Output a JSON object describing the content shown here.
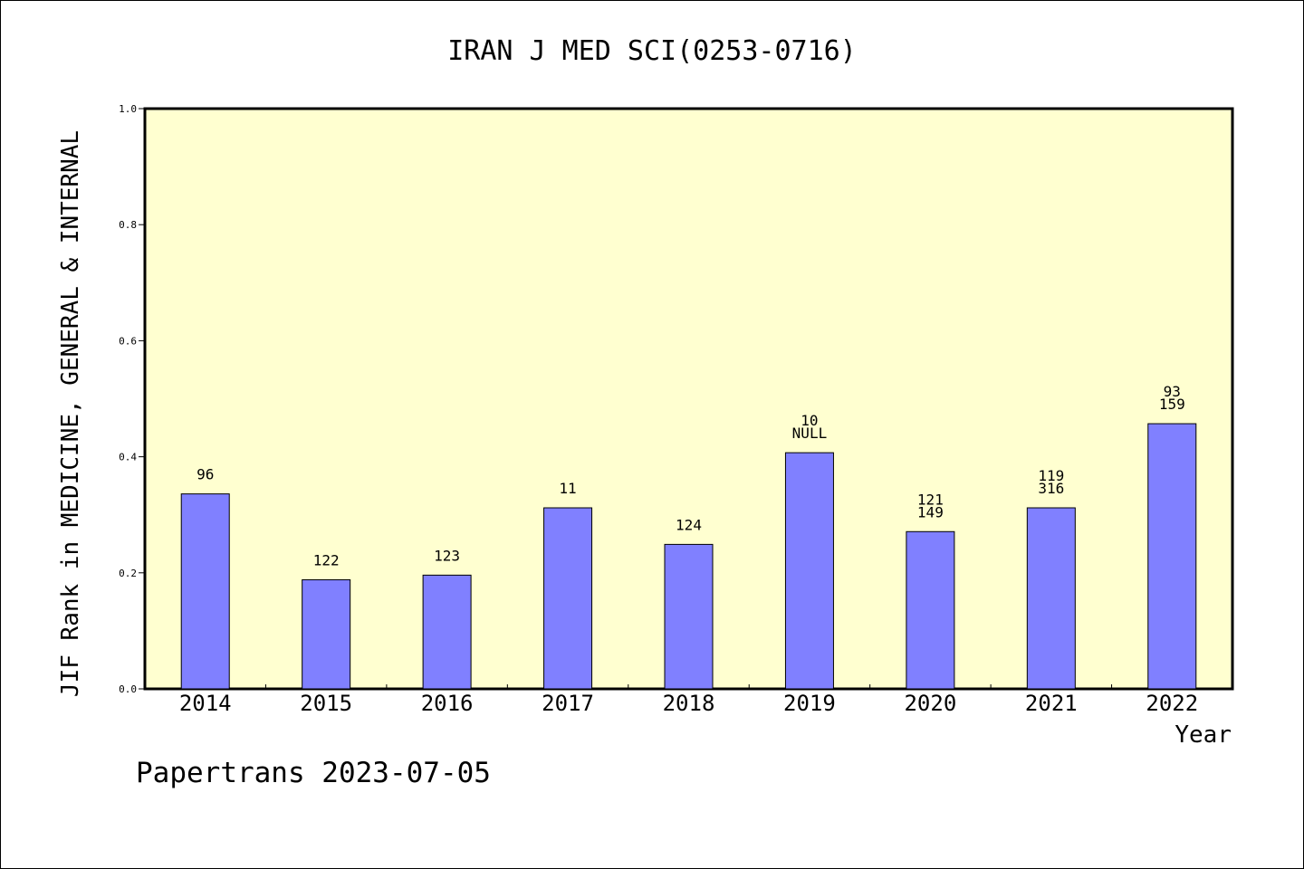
{
  "chart_data": {
    "type": "bar",
    "title": "IRAN J MED SCI(0253-0716)",
    "xlabel": "Year",
    "ylabel": "JIF Rank in MEDICINE, GENERAL & INTERNAL",
    "ylim": [
      0,
      1.0
    ],
    "yticks": [
      "0.0",
      "0.2",
      "0.4",
      "0.6",
      "0.8",
      "1.0"
    ],
    "categories": [
      "2014",
      "2015",
      "2016",
      "2017",
      "2018",
      "2019",
      "2020",
      "2021",
      "2022"
    ],
    "values": [
      0.336,
      0.188,
      0.196,
      0.312,
      0.249,
      0.407,
      0.271,
      0.312,
      0.457
    ],
    "labels": [
      [
        "96"
      ],
      [
        "122"
      ],
      [
        "123"
      ],
      [
        "11"
      ],
      [
        "124"
      ],
      [
        "10",
        "NULL"
      ],
      [
        "121",
        "149"
      ],
      [
        "119",
        "316"
      ],
      [
        "93",
        "159"
      ]
    ],
    "grid": false,
    "legend": "none"
  },
  "footer": "Papertrans 2023-07-05",
  "colors": {
    "plot_background": "#ffffd0",
    "bar_fill": "#8080ff",
    "axis": "#000000"
  }
}
